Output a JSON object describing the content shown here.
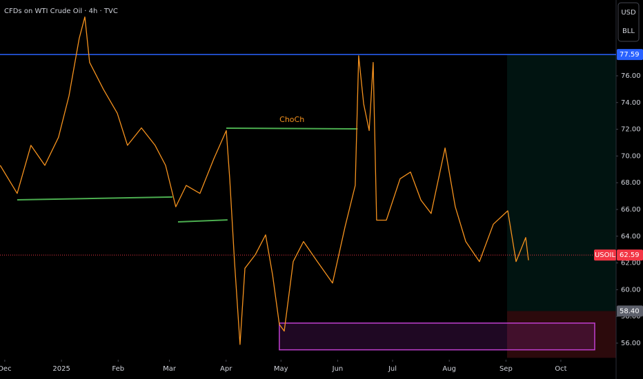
{
  "chart_data": {
    "type": "line",
    "title": "CFDs on WTI Crude Oil · 4h · TVC",
    "currency": "USD",
    "unit": "BLL",
    "color": "#f7931e",
    "x": [
      -2.5,
      6.8,
      14.3,
      21.9,
      29.4,
      35.1,
      40.7,
      43.8,
      46.4,
      53.9,
      61.5,
      67.1,
      74.7,
      82.2,
      87.9,
      93.5,
      99.2,
      106.7,
      114.3,
      121.1,
      123.0,
      125.6,
      128.6,
      131.3,
      136.9,
      142.6,
      146.4,
      150.1,
      152.8,
      157.7,
      163.3,
      170.9,
      179.2,
      186.0,
      191.6,
      193.5,
      196.2,
      199.2,
      201.4,
      203.3,
      208.6,
      216.1,
      221.8,
      227.5,
      233.1,
      240.7,
      246.3,
      252.0,
      259.5,
      267.1,
      275.0,
      279.5,
      284.8,
      286.3
    ],
    "values": [
      69.3,
      67.2,
      70.8,
      69.3,
      71.4,
      74.5,
      78.8,
      80.4,
      77.0,
      75.0,
      73.2,
      70.8,
      72.1,
      70.8,
      69.3,
      66.2,
      67.8,
      67.2,
      69.8,
      71.9,
      68.3,
      62.1,
      55.9,
      61.6,
      62.6,
      64.1,
      61.1,
      57.4,
      56.9,
      62.1,
      63.6,
      62.1,
      60.5,
      64.7,
      67.8,
      77.5,
      73.9,
      71.9,
      77.0,
      65.2,
      65.2,
      68.3,
      68.8,
      66.7,
      65.7,
      70.6,
      66.2,
      63.6,
      62.1,
      64.9,
      65.9,
      62.1,
      63.9,
      62.2
    ],
    "xlim": [
      -2.6,
      334.2
    ],
    "xticks": [
      {
        "value": 0,
        "label": "Dec"
      },
      {
        "value": 31,
        "label": "2025"
      },
      {
        "value": 62,
        "label": "Feb"
      },
      {
        "value": 90,
        "label": "Mar"
      },
      {
        "value": 121,
        "label": "Apr"
      },
      {
        "value": 151,
        "label": "May"
      },
      {
        "value": 182,
        "label": "Jun"
      },
      {
        "value": 212,
        "label": "Jul"
      },
      {
        "value": 243,
        "label": "Aug"
      },
      {
        "value": 274,
        "label": "Sep"
      },
      {
        "value": 304,
        "label": "Oct"
      }
    ],
    "ylim": [
      54.76,
      81.67
    ],
    "yticks": [
      {
        "value": 56,
        "label": "56.00"
      },
      {
        "value": 58,
        "label": "58.00"
      },
      {
        "value": 60,
        "label": "60.00"
      },
      {
        "value": 62,
        "label": "62.00"
      },
      {
        "value": 64,
        "label": "64.00"
      },
      {
        "value": 66,
        "label": "66.00"
      },
      {
        "value": 68,
        "label": "68.00"
      },
      {
        "value": 70,
        "label": "70.00"
      },
      {
        "value": 72,
        "label": "72.00"
      },
      {
        "value": 74,
        "label": "74.00"
      },
      {
        "value": 76,
        "label": "76.00"
      }
    ],
    "levels": [
      {
        "value": 77.59,
        "label": "77.59",
        "color": "#2962ff",
        "line": "solid"
      },
      {
        "value": 62.59,
        "label": "62.59",
        "symbol": "USOIL",
        "color": "#f23645",
        "line": "dotted"
      },
      {
        "value": 58.4,
        "label": "58.40",
        "color": "#5d606b",
        "line": "none"
      }
    ],
    "trendlines": [
      {
        "x": [
          6.8,
          91.7
        ],
        "y": [
          66.72,
          66.93
        ],
        "color": "#4caf50"
      },
      {
        "x": [
          94.7,
          121.8
        ],
        "y": [
          65.07,
          65.22
        ],
        "color": "#4caf50"
      },
      {
        "x": [
          121.1,
          192.9
        ],
        "y": [
          72.08,
          72.03
        ],
        "color": "#4caf50",
        "label": "ChoCh",
        "label_color": "#f7931e"
      }
    ],
    "zones": [
      {
        "x": [
          274.6,
          334.2
        ],
        "y": [
          58.4,
          77.59
        ],
        "color": "rgba(8,153,129,0.13)",
        "stroke": "none"
      },
      {
        "x": [
          274.6,
          334.2
        ],
        "y": [
          54.9,
          58.4
        ],
        "color": "rgba(242,54,69,0.18)",
        "stroke": "none"
      },
      {
        "x": [
          150.1,
          322.5
        ],
        "y": [
          55.5,
          57.5
        ],
        "color": "rgba(156,39,176,0.2)",
        "stroke": "#c040d0"
      }
    ]
  }
}
